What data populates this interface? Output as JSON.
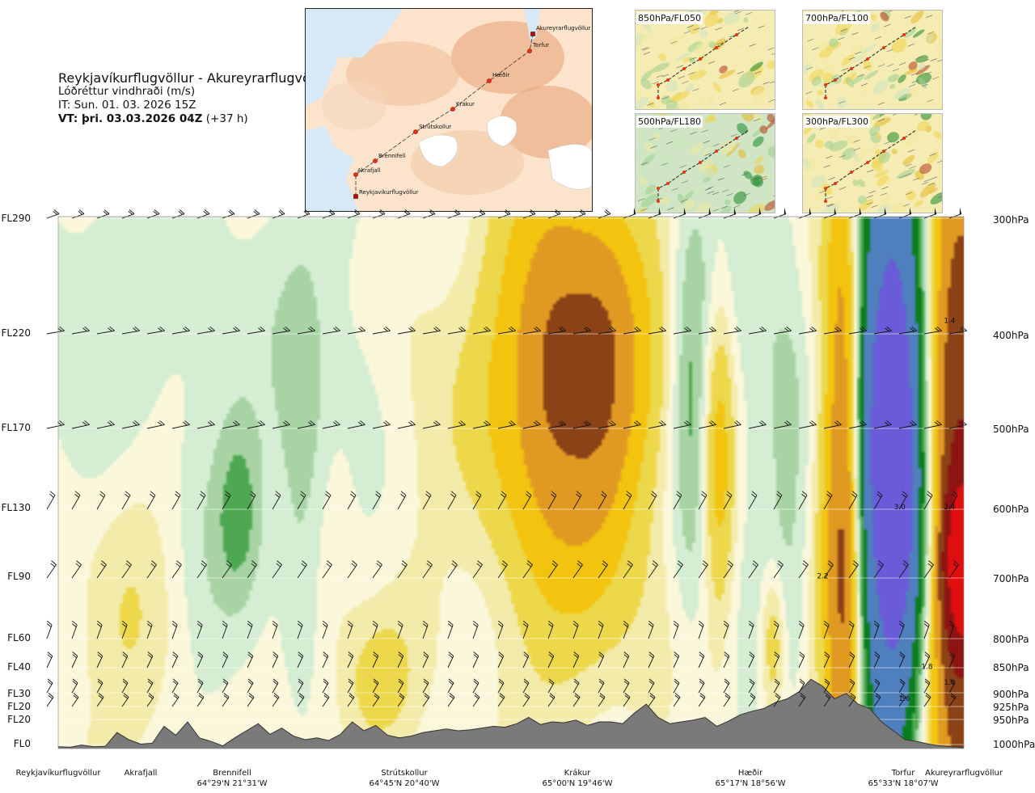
{
  "header": {
    "title": "Reykjavíkurflugvöllur - Akureyrarflugvöllur",
    "subtitle": "Lóðréttur vindhraði (m/s)",
    "issue_time": "IT: Sun. 01. 03. 2026 15Z",
    "valid_time": "VT: þri. 03.03.2026 04Z",
    "lead": "(+37 h)"
  },
  "route_map": {
    "waypoints": [
      {
        "name": "Reykjavíkurflugvöllur",
        "marker": "square"
      },
      {
        "name": "Akrafjall",
        "marker": "circle"
      },
      {
        "name": "Brennifell",
        "marker": "circle"
      },
      {
        "name": "Strútskollur",
        "marker": "circle"
      },
      {
        "name": "Krákur",
        "marker": "circle"
      },
      {
        "name": "Hæðir",
        "marker": "circle"
      },
      {
        "name": "Torfur",
        "marker": "circle"
      },
      {
        "name": "Akureyrarflugvöllur",
        "marker": "square"
      }
    ]
  },
  "mini_maps": [
    {
      "label": "850hPa/FL050"
    },
    {
      "label": "700hPa/FL100"
    },
    {
      "label": "500hPa/FL180"
    },
    {
      "label": "300hPa/FL300"
    }
  ],
  "chart_data": {
    "type": "heatmap",
    "title": "Lóðréttur vindhraði (m/s)",
    "x_axis": "route distance (Reykjavíkurflugvöllur → Akureyrarflugvöllur)",
    "left_axis_levels": [
      "FL290",
      "FL220",
      "FL170",
      "FL130",
      "FL90",
      "FL60",
      "FL40",
      "FL30",
      "FL20",
      "FL20",
      "FL0"
    ],
    "right_axis_levels": [
      "300hPa",
      "400hPa",
      "500hPa",
      "600hPa",
      "700hPa",
      "800hPa",
      "850hPa",
      "900hPa",
      "925hPa",
      "950hPa",
      "1000hPa"
    ],
    "x_locations": [
      {
        "name": "Reykjavíkurflugvöllur",
        "coord": "",
        "frac": 0.0
      },
      {
        "name": "Akrafjall",
        "coord": "",
        "frac": 0.094
      },
      {
        "name": "Brennifell",
        "coord": "64°29'N 21°31'W",
        "frac": 0.2
      },
      {
        "name": "Strútskollur",
        "coord": "64°45'N 20°40'W",
        "frac": 0.38
      },
      {
        "name": "Krákur",
        "coord": "65°00'N 19°46'W",
        "frac": 0.57
      },
      {
        "name": "Hæðir",
        "coord": "65°17'N 18°56'W",
        "frac": 0.78
      },
      {
        "name": "Torfur",
        "coord": "65°33'N 18°07'W",
        "frac": 0.932
      },
      {
        "name": "Akureyrarflugvöllur",
        "coord": "",
        "frac": 1.0
      }
    ],
    "color_scale": [
      {
        "max": -1.6,
        "color": "#1a0f8c"
      },
      {
        "max": -1.0,
        "color": "#6a5bd9"
      },
      {
        "max": -0.6,
        "color": "#4f7fbd"
      },
      {
        "max": -0.4,
        "color": "#0a7e1e"
      },
      {
        "max": -0.25,
        "color": "#4ea852"
      },
      {
        "max": -0.15,
        "color": "#a8d4a5"
      },
      {
        "max": -0.05,
        "color": "#d5eed3"
      },
      {
        "max": 0.05,
        "color": "#fbf7da"
      },
      {
        "max": 0.15,
        "color": "#f3ebaa"
      },
      {
        "max": 0.3,
        "color": "#ecd84a"
      },
      {
        "max": 0.5,
        "color": "#f2c40f"
      },
      {
        "max": 0.8,
        "color": "#e09a22"
      },
      {
        "max": 1.2,
        "color": "#8b4216"
      },
      {
        "max": 2.0,
        "color": "#8e1414"
      },
      {
        "max": 99,
        "color": "#e01010"
      }
    ],
    "features": [
      {
        "x": 0.08,
        "y": 0.65,
        "sx": 0.05,
        "sy": 0.35,
        "value": 0.16
      },
      {
        "x": 0.05,
        "y": 0.25,
        "sx": 0.05,
        "sy": 0.22,
        "value": -0.18
      },
      {
        "x": 0.16,
        "y": 0.5,
        "sx": 0.04,
        "sy": 0.35,
        "value": -0.12
      },
      {
        "x": 0.2,
        "y": 0.55,
        "sx": 0.018,
        "sy": 0.12,
        "value": -0.2
      },
      {
        "x": 0.285,
        "y": 0.6,
        "sx": 0.03,
        "sy": 0.3,
        "value": 0.14
      },
      {
        "x": 0.31,
        "y": 0.25,
        "sx": 0.06,
        "sy": 0.3,
        "value": -0.12
      },
      {
        "x": 0.39,
        "y": 0.3,
        "sx": 0.035,
        "sy": 0.35,
        "value": 0.12
      },
      {
        "x": 0.27,
        "y": 0.52,
        "sx": 0.02,
        "sy": 0.25,
        "value": -0.25
      },
      {
        "x": 0.45,
        "y": 0.28,
        "sx": 0.05,
        "sy": 0.45,
        "value": -0.1
      },
      {
        "x": 0.53,
        "y": 0.3,
        "sx": 0.07,
        "sy": 0.3,
        "value": 0.22
      },
      {
        "x": 0.57,
        "y": 0.35,
        "sx": 0.08,
        "sy": 0.36,
        "value": 0.42
      },
      {
        "x": 0.55,
        "y": 0.27,
        "sx": 0.025,
        "sy": 0.16,
        "value": 0.35
      },
      {
        "x": 0.6,
        "y": 0.28,
        "sx": 0.025,
        "sy": 0.17,
        "value": 0.4
      },
      {
        "x": 0.35,
        "y": 0.88,
        "sx": 0.03,
        "sy": 0.1,
        "value": 0.22
      },
      {
        "x": 0.7,
        "y": 0.35,
        "sx": 0.018,
        "sy": 0.28,
        "value": -0.35
      },
      {
        "x": 0.73,
        "y": 0.45,
        "sx": 0.013,
        "sy": 0.22,
        "value": 0.45
      },
      {
        "x": 0.77,
        "y": 0.3,
        "sx": 0.04,
        "sy": 0.45,
        "value": -0.12
      },
      {
        "x": 0.79,
        "y": 0.8,
        "sx": 0.01,
        "sy": 0.1,
        "value": 0.35
      },
      {
        "x": 0.82,
        "y": 0.45,
        "sx": 0.022,
        "sy": 0.28,
        "value": -0.15
      },
      {
        "x": 0.85,
        "y": 0.5,
        "sx": 0.02,
        "sy": 0.4,
        "value": 0.35
      },
      {
        "x": 0.87,
        "y": 0.6,
        "sx": 0.013,
        "sy": 0.55,
        "value": 0.9
      },
      {
        "x": 0.93,
        "y": 0.45,
        "sx": 0.035,
        "sy": 0.42,
        "value": -1.6
      },
      {
        "x": 0.99,
        "y": 0.5,
        "sx": 0.03,
        "sy": 0.52,
        "value": 1.5
      },
      {
        "x": 1.0,
        "y": 0.65,
        "sx": 0.012,
        "sy": 0.1,
        "value": 2.4
      }
    ],
    "contour_labels": [
      {
        "text": "1.4",
        "x": 0.985,
        "y": 0.2
      },
      {
        "text": "3.0",
        "x": 0.93,
        "y": 0.55
      },
      {
        "text": "2.4",
        "x": 1.0,
        "y": 0.55
      },
      {
        "text": "2.2",
        "x": 0.845,
        "y": 0.68
      },
      {
        "text": "1.8",
        "x": 0.96,
        "y": 0.85
      },
      {
        "text": "1.0",
        "x": 1.0,
        "y": 0.88
      },
      {
        "text": "1.6",
        "x": 0.935,
        "y": 0.91
      }
    ],
    "terrain_height_m": [
      20,
      15,
      40,
      20,
      25,
      180,
      100,
      50,
      60,
      250,
      150,
      300,
      120,
      80,
      30,
      120,
      200,
      280,
      160,
      230,
      140,
      100,
      120,
      90,
      160,
      300,
      200,
      260,
      150,
      120,
      140,
      180,
      200,
      220,
      200,
      210,
      230,
      250,
      240,
      280,
      350,
      270,
      300,
      290,
      320,
      260,
      300,
      300,
      280,
      400,
      500,
      350,
      280,
      300,
      320,
      350,
      250,
      310,
      380,
      420,
      450,
      520,
      560,
      640,
      780,
      700,
      560,
      620,
      500,
      450,
      300,
      200,
      100,
      80,
      50,
      30,
      20,
      10
    ]
  }
}
